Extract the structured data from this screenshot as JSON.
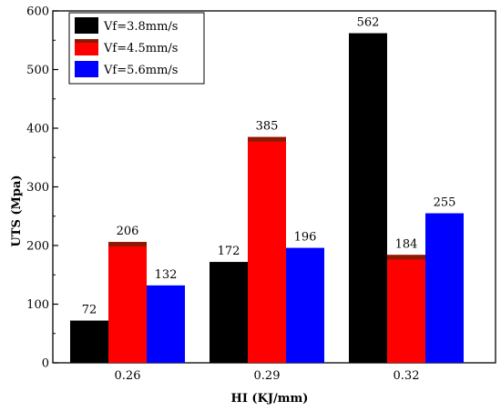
{
  "chart_data": {
    "type": "bar",
    "title": "",
    "xlabel": "HI (KJ/mm)",
    "ylabel": "UTS (Mpa)",
    "categories": [
      "0.26",
      "0.29",
      "0.32"
    ],
    "ylim": [
      0,
      600
    ],
    "yticks": [
      0,
      100,
      200,
      300,
      400,
      500,
      600
    ],
    "grid": false,
    "legend_position": "top-left",
    "series": [
      {
        "name": "Vf=3.8mm/s",
        "color": "#000000",
        "values": [
          72,
          172,
          562
        ]
      },
      {
        "name": "Vf=4.5mm/s",
        "color": "#ff0000",
        "cap_color": "#8b1a00",
        "values": [
          206,
          385,
          184
        ]
      },
      {
        "name": "Vf=5.6mm/s",
        "color": "#0000ff",
        "values": [
          132,
          196,
          255
        ]
      }
    ]
  }
}
